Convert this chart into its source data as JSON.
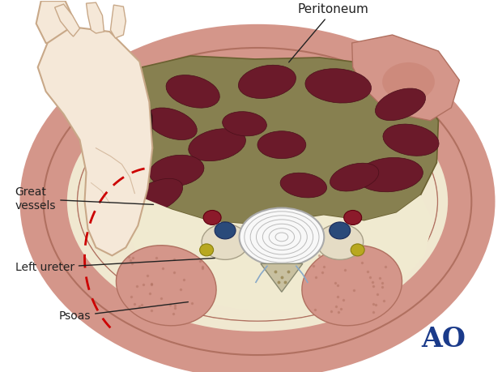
{
  "bg_color": "#ffffff",
  "outer_ring_color": "#f0e8d0",
  "outer_ring_edge": "#c8b89a",
  "muscle_fill": "#d4968a",
  "muscle_edge": "#b07060",
  "dark_mass_fill": "#6b1a2a",
  "dark_mass_edge": "#4a0f1a",
  "hand_fill": "#f5e8d8",
  "hand_edge": "#c8a888",
  "dashed_red": "#cc0000",
  "label_color": "#222222",
  "ao_color": "#1a3a8a",
  "peritoneum_label": "Peritoneum",
  "great_vessels_label": "Great\nvessels",
  "left_ureter_label": "Left ureter",
  "psoas_label": "Psoas",
  "ao_label": "AO",
  "label_fontsize": 10
}
